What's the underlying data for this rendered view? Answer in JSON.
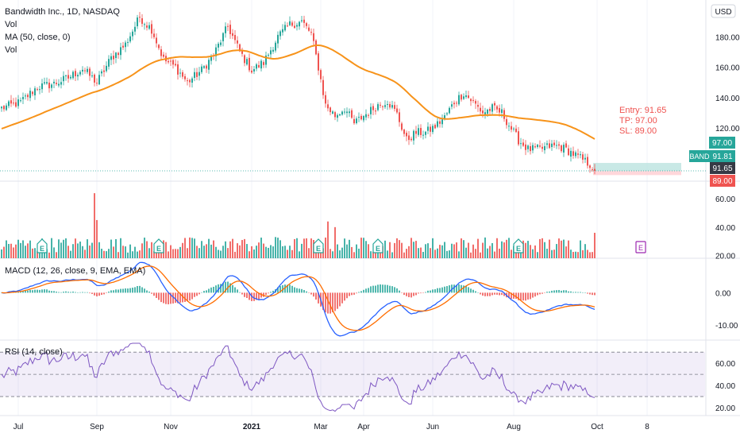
{
  "header": {
    "title": "Bandwidth Inc., 1D, NASDAQ",
    "vol_label": "Vol",
    "ma_label": "MA (50, close, 0)",
    "vol_label2": "Vol",
    "currency": "USD"
  },
  "trade": {
    "entry_text": "Entry: 91.65",
    "tp_text": "TP: 97.00",
    "sl_text": "SL: 89.00",
    "entry": 91.65,
    "tp": 97.0,
    "sl": 89.0
  },
  "price_tags": {
    "symbol": "BAND",
    "last": "91.81",
    "tp": "97.00",
    "entry": "91.65",
    "sl": "89.00"
  },
  "colors": {
    "up": "#26a69a",
    "down": "#ef5350",
    "ma": "#f7931a",
    "macd": "#2962ff",
    "signal": "#ff6d00",
    "rsi": "#7e57c2",
    "tp_zone": "#b2dfdb",
    "sl_zone": "#ffcdd2",
    "earnings": "#26a69a",
    "earnings_future": "#9c27b0"
  },
  "icons": {
    "earnings_letter": "E"
  },
  "chart_data": [
    {
      "type": "candlestick",
      "title": "Bandwidth Inc., 1D, NASDAQ",
      "ylim": [
        85,
        200
      ],
      "yticks": [
        "120.00",
        "140.00",
        "160.00",
        "180.00"
      ],
      "x_ticks": [
        "Jul",
        "Sep",
        "Nov",
        "2021",
        "Mar",
        "Apr",
        "Jun",
        "Aug",
        "Oct",
        "8"
      ],
      "x_tick_bar_index": [
        7,
        40,
        71,
        105,
        134,
        152,
        181,
        215,
        250,
        271
      ],
      "price_path_knots": [
        [
          0,
          133
        ],
        [
          8,
          137
        ],
        [
          15,
          147
        ],
        [
          22,
          149
        ],
        [
          28,
          153
        ],
        [
          34,
          159
        ],
        [
          40,
          150
        ],
        [
          46,
          166
        ],
        [
          52,
          175
        ],
        [
          58,
          193
        ],
        [
          63,
          185
        ],
        [
          68,
          165
        ],
        [
          73,
          160
        ],
        [
          78,
          150
        ],
        [
          84,
          158
        ],
        [
          89,
          168
        ],
        [
          95,
          187
        ],
        [
          100,
          170
        ],
        [
          105,
          158
        ],
        [
          110,
          163
        ],
        [
          116,
          180
        ],
        [
          121,
          188
        ],
        [
          126,
          190
        ],
        [
          130,
          182
        ],
        [
          133,
          160
        ],
        [
          136,
          135
        ],
        [
          140,
          128
        ],
        [
          144,
          133
        ],
        [
          148,
          123
        ],
        [
          152,
          128
        ],
        [
          158,
          135
        ],
        [
          162,
          138
        ],
        [
          166,
          129
        ],
        [
          170,
          112
        ],
        [
          174,
          117
        ],
        [
          178,
          117
        ],
        [
          182,
          121
        ],
        [
          186,
          127
        ],
        [
          190,
          137
        ],
        [
          194,
          143
        ],
        [
          198,
          137
        ],
        [
          202,
          130
        ],
        [
          206,
          133
        ],
        [
          210,
          130
        ],
        [
          213,
          122
        ],
        [
          217,
          112
        ],
        [
          221,
          106
        ],
        [
          226,
          106
        ],
        [
          230,
          108
        ],
        [
          234,
          108
        ],
        [
          238,
          105
        ],
        [
          243,
          100
        ],
        [
          247,
          96
        ],
        [
          249,
          92
        ]
      ],
      "ma_period": 50
    },
    {
      "type": "bar",
      "title": "Vol",
      "yticks": [
        "20.00",
        "40.00",
        "60.00"
      ],
      "ylim": [
        18,
        68
      ],
      "spikes": [
        [
          39,
          64
        ],
        [
          40,
          45
        ],
        [
          137,
          44
        ],
        [
          140,
          40
        ],
        [
          115,
          33
        ],
        [
          249,
          36
        ]
      ],
      "earnings_bar_index": [
        17,
        66,
        133,
        158,
        217
      ],
      "earnings_future_bar_index": [
        260
      ]
    },
    {
      "type": "line",
      "title": "MACD (12, 26, close, 9, EMA, EMA)",
      "yticks": [
        "0.00",
        "-10.00"
      ],
      "ylim": [
        -14,
        9
      ],
      "series": [
        {
          "name": "MACD"
        },
        {
          "name": "Signal"
        },
        {
          "name": "Histogram"
        }
      ]
    },
    {
      "type": "line",
      "title": "RSI (14, close)",
      "yticks": [
        "20.00",
        "40.00",
        "60.00"
      ],
      "ylim": [
        15,
        78
      ],
      "bands": [
        30,
        50,
        70
      ],
      "series": [
        {
          "name": "RSI"
        }
      ]
    }
  ]
}
